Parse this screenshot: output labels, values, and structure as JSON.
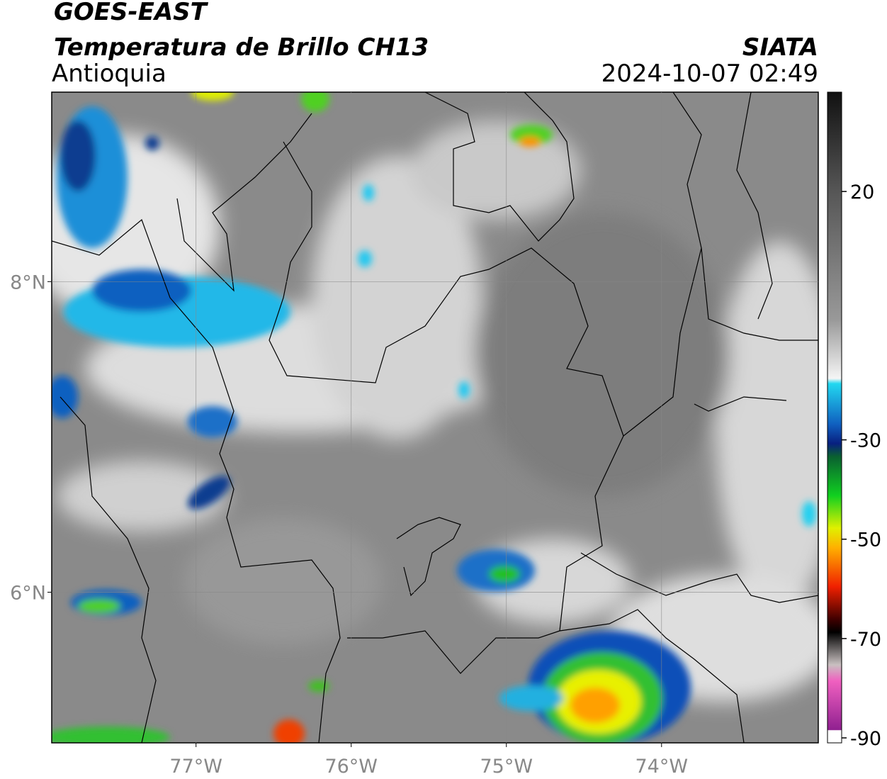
{
  "header": {
    "satellite": "GOES-EAST",
    "product": "Temperatura de Brillo CH13",
    "region": "Antioquia",
    "source": "SIATA",
    "datetime": "2024-10-07 02:49"
  },
  "map": {
    "xlim": [
      -77.93,
      -72.99
    ],
    "ylim": [
      5.03,
      9.22
    ],
    "xticks": [
      {
        "value": -77,
        "label": "77°W"
      },
      {
        "value": -76,
        "label": "76°W"
      },
      {
        "value": -75,
        "label": "75°W"
      },
      {
        "value": -74,
        "label": "74°W"
      }
    ],
    "yticks": [
      {
        "value": 8,
        "label": "8°N"
      },
      {
        "value": 6,
        "label": "6°N"
      }
    ],
    "grid": true
  },
  "colorbar": {
    "lim": [
      -91,
      40
    ],
    "ticks": [
      20,
      -30,
      -50,
      -70,
      -90
    ]
  }
}
